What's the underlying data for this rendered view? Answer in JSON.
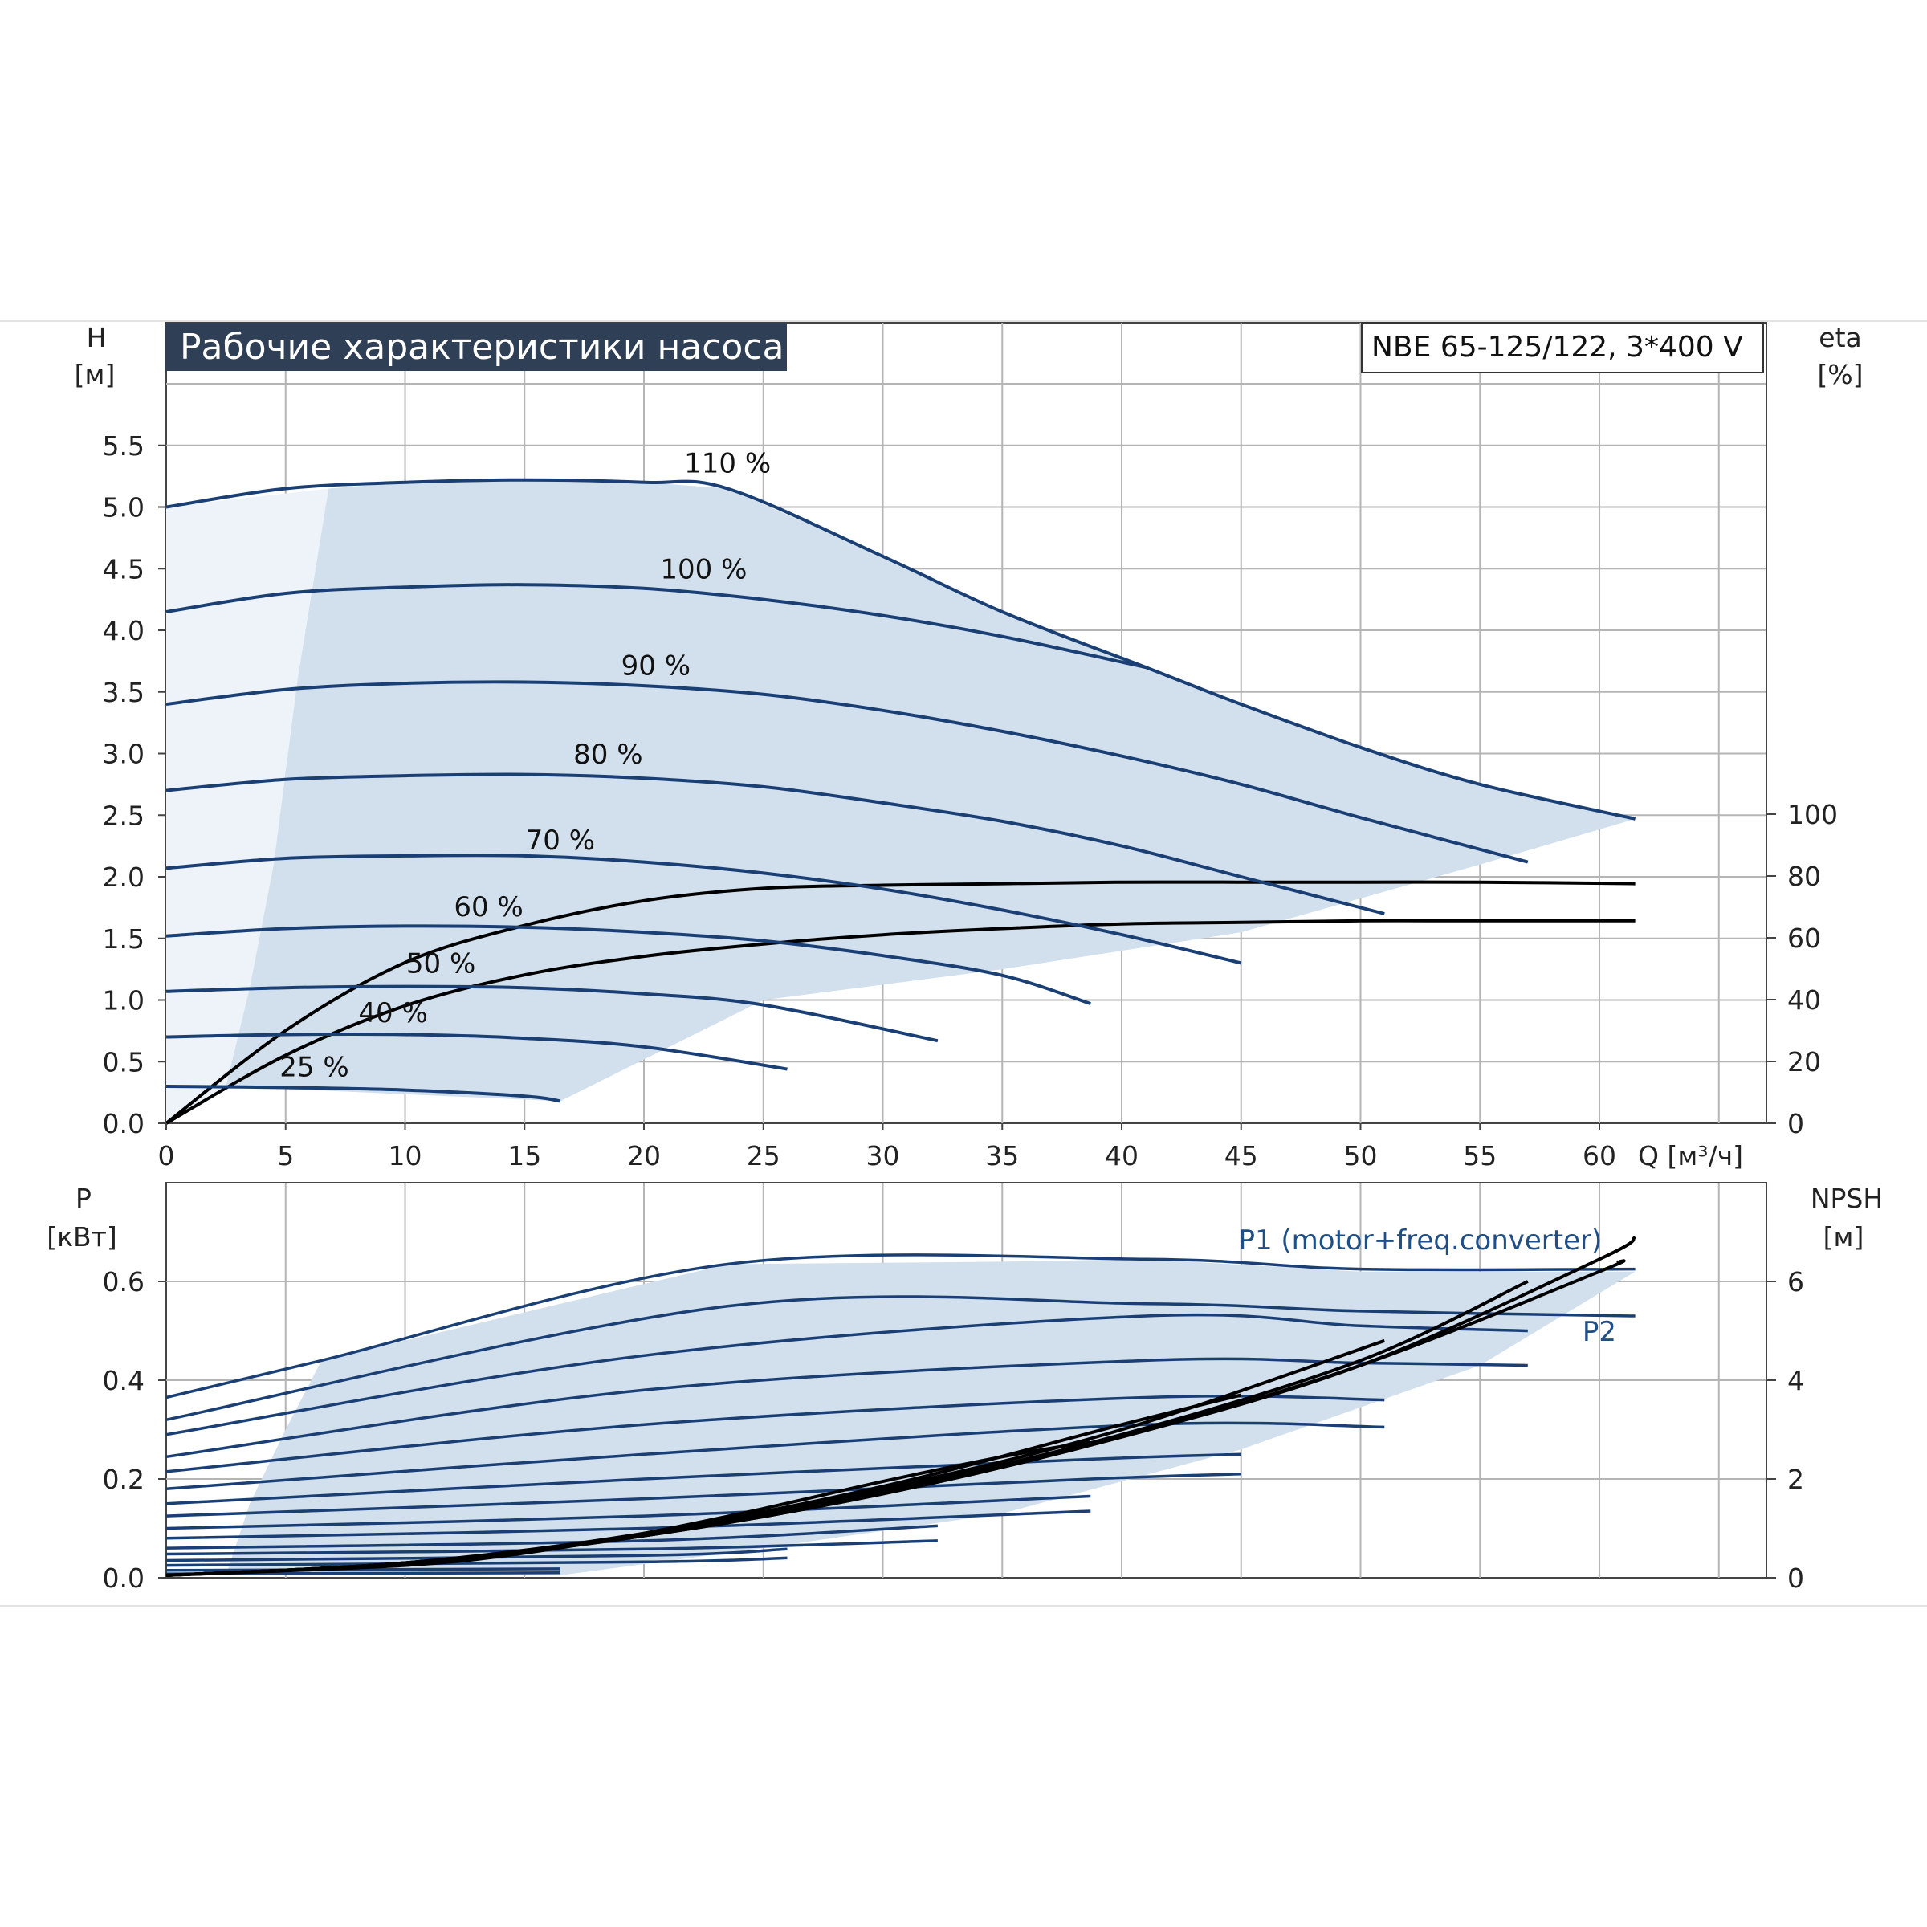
{
  "title": "Рабочие характеристики насоса",
  "model": "NBE 65-125/122, 3*400 V",
  "colors": {
    "curve": "#1a3f74",
    "area": "#d2dfec",
    "area_light": "#edf3f9",
    "eff": "#000000",
    "title_bg": "#2f3f55",
    "grid": "#b5b5b5"
  },
  "chart_data": [
    {
      "type": "line",
      "name": "head",
      "x_axis": {
        "label": "Q [м³/ч]",
        "ticks": [
          "0",
          "5",
          "10",
          "15",
          "20",
          "25",
          "30",
          "35",
          "40",
          "45",
          "50",
          "55",
          "60"
        ],
        "range": [
          0,
          66
        ]
      },
      "y_left": {
        "label_line1": "H",
        "label_line2": "[м]",
        "ticks": [
          "0.0",
          "0.5",
          "1.0",
          "1.5",
          "2.0",
          "2.5",
          "3.0",
          "3.5",
          "4.0",
          "4.5",
          "5.0",
          "5.5"
        ],
        "range": [
          0,
          6
        ]
      },
      "y_right": {
        "label_line1": "eta",
        "label_line2": "[%]",
        "ticks": [
          "0",
          "20",
          "40",
          "60",
          "80",
          "100"
        ],
        "range": [
          0,
          100
        ]
      },
      "grid": true,
      "envelope": [
        [
          6.8,
          5.15
        ],
        [
          10,
          5.2
        ],
        [
          15,
          5.22
        ],
        [
          20,
          5.2
        ],
        [
          23.5,
          5.15
        ],
        [
          30,
          4.6
        ],
        [
          35,
          4.15
        ],
        [
          41,
          3.7
        ],
        [
          45,
          3.4
        ],
        [
          50,
          3.05
        ],
        [
          55,
          2.75
        ],
        [
          61.5,
          2.47
        ],
        [
          55,
          2.1
        ],
        [
          45,
          1.55
        ],
        [
          35,
          1.25
        ],
        [
          25,
          1.0
        ],
        [
          16.5,
          0.18
        ],
        [
          2.5,
          0.3
        ],
        [
          3.5,
          1.1
        ],
        [
          4.5,
          2.1
        ],
        [
          5.5,
          3.6
        ],
        [
          6.8,
          5.15
        ]
      ],
      "envelope_light": [
        [
          0,
          5.0
        ],
        [
          6.8,
          5.15
        ],
        [
          5.5,
          3.6
        ],
        [
          4.5,
          2.1
        ],
        [
          3.5,
          1.1
        ],
        [
          2.5,
          0.3
        ],
        [
          0,
          0
        ]
      ],
      "series": [
        {
          "label": "110 %",
          "label_at": [
            23.5,
            5.28
          ],
          "x": [
            0,
            5,
            10,
            15,
            20,
            23.5,
            30,
            35,
            41,
            45,
            50,
            55,
            61.5
          ],
          "y": [
            5.0,
            5.15,
            5.2,
            5.22,
            5.2,
            5.15,
            4.6,
            4.15,
            3.7,
            3.4,
            3.05,
            2.75,
            2.47
          ]
        },
        {
          "label": "100 %",
          "label_at": [
            22.5,
            4.42
          ],
          "x": [
            0,
            5,
            10,
            15,
            20,
            25,
            30,
            35,
            41
          ],
          "y": [
            4.15,
            4.3,
            4.35,
            4.37,
            4.34,
            4.25,
            4.12,
            3.95,
            3.7
          ]
        },
        {
          "label": "90 %",
          "label_at": [
            20.5,
            3.64
          ],
          "x": [
            0,
            5,
            10,
            15,
            20,
            25,
            30,
            35,
            40,
            45,
            50,
            57
          ],
          "y": [
            3.4,
            3.52,
            3.57,
            3.58,
            3.55,
            3.48,
            3.35,
            3.18,
            2.98,
            2.75,
            2.48,
            2.12
          ]
        },
        {
          "label": "80 %",
          "label_at": [
            18.5,
            2.92
          ],
          "x": [
            0,
            5,
            10,
            15,
            20,
            25,
            30,
            35,
            40,
            45,
            51
          ],
          "y": [
            2.7,
            2.79,
            2.82,
            2.83,
            2.8,
            2.73,
            2.6,
            2.45,
            2.25,
            2.0,
            1.7
          ]
        },
        {
          "label": "70 %",
          "label_at": [
            16.5,
            2.22
          ],
          "x": [
            0,
            5,
            10,
            15,
            20,
            25,
            30,
            35,
            40,
            45
          ],
          "y": [
            2.07,
            2.15,
            2.17,
            2.17,
            2.12,
            2.03,
            1.9,
            1.73,
            1.53,
            1.3
          ]
        },
        {
          "label": "60 %",
          "label_at": [
            13.5,
            1.68
          ],
          "x": [
            0,
            5,
            10,
            15,
            20,
            25,
            30,
            35,
            38.7
          ],
          "y": [
            1.52,
            1.58,
            1.6,
            1.59,
            1.55,
            1.48,
            1.36,
            1.2,
            0.97
          ]
        },
        {
          "label": "50 %",
          "label_at": [
            11.5,
            1.22
          ],
          "x": [
            0,
            5,
            10,
            15,
            20,
            25,
            32.3
          ],
          "y": [
            1.07,
            1.1,
            1.11,
            1.1,
            1.05,
            0.96,
            0.67
          ]
        },
        {
          "label": "40 %",
          "label_at": [
            9.5,
            0.82
          ],
          "x": [
            0,
            5,
            10,
            15,
            20,
            26
          ],
          "y": [
            0.7,
            0.72,
            0.72,
            0.69,
            0.62,
            0.44
          ]
        },
        {
          "label": "25 %",
          "label_at": [
            6.2,
            0.38
          ],
          "x": [
            0,
            5,
            10,
            15,
            16.5
          ],
          "y": [
            0.3,
            0.29,
            0.27,
            0.22,
            0.18
          ]
        }
      ],
      "efficiency": [
        {
          "name": "eta_pump",
          "x": [
            0,
            5,
            10,
            15,
            20,
            25,
            30,
            35,
            40,
            45,
            50,
            55,
            61.5
          ],
          "y": [
            0,
            22,
            38,
            48,
            54,
            58,
            61,
            63,
            64.5,
            65,
            65.5,
            65.5,
            65.5
          ]
        },
        {
          "name": "eta_total",
          "x": [
            0,
            5,
            10,
            15,
            20,
            25,
            30,
            35,
            40,
            45,
            50,
            55,
            61.5
          ],
          "y": [
            0,
            30,
            52,
            64,
            72,
            76,
            77,
            77.5,
            78,
            78,
            78,
            78,
            77.5
          ]
        }
      ]
    },
    {
      "type": "line",
      "name": "power_npsh",
      "x_axis": {
        "range": [
          0,
          66
        ]
      },
      "y_left": {
        "label_line1": "P",
        "label_line2": "[кВт]",
        "ticks": [
          "0.0",
          "0.2",
          "0.4",
          "0.6"
        ],
        "range": [
          0,
          0.75
        ]
      },
      "y_right": {
        "label_line1": "NPSH",
        "label_line2": "[м]",
        "ticks": [
          "0",
          "2",
          "4",
          "6"
        ],
        "range": [
          0,
          7.5
        ]
      },
      "grid": true,
      "series_labels": [
        {
          "label": "P1 (motor+freq.converter)",
          "at": [
            52.5,
            0.665
          ]
        },
        {
          "label": "P2",
          "at": [
            60,
            0.48
          ]
        }
      ],
      "envelope": [
        [
          6.5,
          0.44
        ],
        [
          23.5,
          0.635
        ],
        [
          35,
          0.64
        ],
        [
          41,
          0.645
        ],
        [
          50,
          0.62
        ],
        [
          61.5,
          0.62
        ],
        [
          55,
          0.43
        ],
        [
          45,
          0.26
        ],
        [
          35,
          0.13
        ],
        [
          25,
          0.06
        ],
        [
          16.5,
          0.005
        ],
        [
          2.5,
          0.005
        ],
        [
          3.5,
          0.15
        ],
        [
          5,
          0.3
        ],
        [
          6.5,
          0.44
        ]
      ],
      "power_curves": [
        {
          "x": [
            0,
            6.5,
            23.5,
            41,
            50,
            61.5
          ],
          "y": [
            0.365,
            0.44,
            0.635,
            0.645,
            0.625,
            0.625
          ]
        },
        {
          "x": [
            0,
            23.5,
            41,
            50,
            61.5
          ],
          "y": [
            0.32,
            0.55,
            0.555,
            0.54,
            0.53
          ]
        },
        {
          "x": [
            0,
            20,
            41,
            50,
            57
          ],
          "y": [
            0.29,
            0.45,
            0.53,
            0.51,
            0.5
          ]
        },
        {
          "x": [
            0,
            20,
            41,
            50,
            57
          ],
          "y": [
            0.245,
            0.38,
            0.44,
            0.435,
            0.43
          ]
        },
        {
          "x": [
            0,
            20,
            41,
            51
          ],
          "y": [
            0.215,
            0.31,
            0.365,
            0.36
          ]
        },
        {
          "x": [
            0,
            20,
            41,
            51
          ],
          "y": [
            0.18,
            0.25,
            0.31,
            0.305
          ]
        },
        {
          "x": [
            0,
            20,
            38.7,
            45
          ],
          "y": [
            0.15,
            0.2,
            0.24,
            0.25
          ]
        },
        {
          "x": [
            0,
            20,
            38.7,
            45
          ],
          "y": [
            0.125,
            0.16,
            0.2,
            0.21
          ]
        },
        {
          "x": [
            0,
            20,
            38.7
          ],
          "y": [
            0.1,
            0.125,
            0.165
          ]
        },
        {
          "x": [
            0,
            20,
            38.7
          ],
          "y": [
            0.08,
            0.1,
            0.135
          ]
        },
        {
          "x": [
            0,
            20,
            32.3
          ],
          "y": [
            0.06,
            0.075,
            0.105
          ]
        },
        {
          "x": [
            0,
            20,
            32.3
          ],
          "y": [
            0.048,
            0.058,
            0.075
          ]
        },
        {
          "x": [
            0,
            20,
            26
          ],
          "y": [
            0.035,
            0.045,
            0.058
          ]
        },
        {
          "x": [
            0,
            20,
            26
          ],
          "y": [
            0.025,
            0.032,
            0.04
          ]
        },
        {
          "x": [
            0,
            16.5
          ],
          "y": [
            0.015,
            0.018
          ]
        },
        {
          "x": [
            0,
            16.5
          ],
          "y": [
            0.008,
            0.01
          ]
        }
      ],
      "npsh": [
        {
          "x": [
            0,
            10,
            15,
            20,
            25,
            30,
            35,
            38.7
          ],
          "y": [
            0.05,
            0.25,
            0.5,
            0.9,
            1.4,
            1.95,
            2.45,
            2.75
          ]
        },
        {
          "x": [
            0,
            10,
            20,
            30,
            40,
            45
          ],
          "y": [
            0.05,
            0.3,
            0.9,
            1.85,
            3.1,
            3.7
          ]
        },
        {
          "x": [
            0,
            10,
            20,
            30,
            40,
            51
          ],
          "y": [
            0.05,
            0.3,
            0.85,
            1.8,
            3.0,
            4.8
          ]
        },
        {
          "x": [
            0,
            10,
            20,
            30,
            40,
            50,
            57
          ],
          "y": [
            0.05,
            0.3,
            0.85,
            1.75,
            2.9,
            4.4,
            6.0
          ]
        },
        {
          "x": [
            0,
            10,
            20,
            30,
            40,
            50,
            60,
            60.8
          ],
          "y": [
            0.05,
            0.3,
            0.85,
            1.7,
            2.85,
            4.3,
            6.2,
            6.4
          ]
        },
        {
          "x": [
            0,
            10,
            20,
            30,
            40,
            50,
            60,
            61.5
          ],
          "y": [
            0.05,
            0.3,
            0.85,
            1.7,
            2.85,
            4.3,
            6.45,
            6.9
          ]
        }
      ]
    }
  ]
}
